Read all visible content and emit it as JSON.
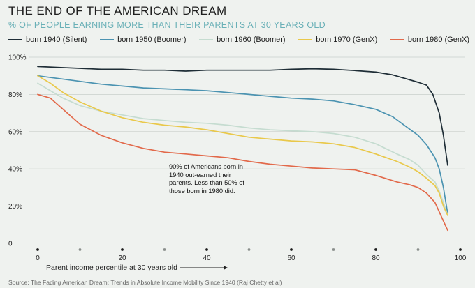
{
  "chart_data": {
    "type": "line",
    "title": "THE END OF THE AMERICAN DREAM",
    "subtitle": "% OF PEOPLE EARNING MORE THAN THEIR PARENTS AT 30 YEARS OLD",
    "xlabel": "Parent income percentile at 30 years old",
    "ylabel": "",
    "xlim": [
      0,
      100
    ],
    "ylim": [
      0,
      100
    ],
    "x_ticks": [
      "0",
      "20",
      "40",
      "60",
      "80",
      "100"
    ],
    "y_ticks": [
      "0",
      "20%",
      "40%",
      "60%",
      "80%",
      "100%"
    ],
    "grid": "horizontal",
    "legend": "top",
    "annotation": "90% of Americans born in 1940 out-earned their parents. Less than 50% of those born in 1980 did.",
    "source": "Source: The Fading American Dream: Trends in Absolute Income Mobility Since 1940 (Raj Chetty et al)",
    "series": [
      {
        "name": "born 1940 (Silent)",
        "color": "#1e2d36",
        "points": [
          [
            0,
            95
          ],
          [
            5,
            94.5
          ],
          [
            10,
            94
          ],
          [
            15,
            93.5
          ],
          [
            20,
            93.5
          ],
          [
            25,
            93
          ],
          [
            30,
            93
          ],
          [
            35,
            92.5
          ],
          [
            40,
            93
          ],
          [
            45,
            93
          ],
          [
            50,
            93
          ],
          [
            55,
            93
          ],
          [
            60,
            93.5
          ],
          [
            65,
            93.8
          ],
          [
            70,
            93.5
          ],
          [
            75,
            92.8
          ],
          [
            80,
            92
          ],
          [
            84,
            90.5
          ],
          [
            87,
            88.5
          ],
          [
            90,
            86.5
          ],
          [
            92,
            85
          ],
          [
            93.5,
            80
          ],
          [
            95,
            70
          ],
          [
            96,
            58
          ],
          [
            97,
            42
          ]
        ]
      },
      {
        "name": "born 1950 (Boomer)",
        "color": "#4b93b1",
        "points": [
          [
            0,
            90
          ],
          [
            5,
            88.5
          ],
          [
            10,
            87
          ],
          [
            15,
            85.5
          ],
          [
            20,
            84.5
          ],
          [
            25,
            83.5
          ],
          [
            30,
            83
          ],
          [
            35,
            82.5
          ],
          [
            40,
            82
          ],
          [
            45,
            81
          ],
          [
            50,
            80
          ],
          [
            55,
            79
          ],
          [
            60,
            78
          ],
          [
            65,
            77.5
          ],
          [
            70,
            76.5
          ],
          [
            75,
            74.5
          ],
          [
            80,
            72
          ],
          [
            84,
            68
          ],
          [
            87,
            63
          ],
          [
            90,
            58
          ],
          [
            92,
            53
          ],
          [
            94,
            46
          ],
          [
            95,
            40
          ],
          [
            96,
            30
          ],
          [
            97,
            16
          ]
        ]
      },
      {
        "name": "born 1960 (Boomer)",
        "color": "#c5dcd0",
        "points": [
          [
            0,
            86
          ],
          [
            3,
            82
          ],
          [
            6,
            78
          ],
          [
            10,
            74
          ],
          [
            15,
            71
          ],
          [
            20,
            69
          ],
          [
            25,
            67
          ],
          [
            30,
            66
          ],
          [
            35,
            65
          ],
          [
            40,
            64.5
          ],
          [
            45,
            63.5
          ],
          [
            50,
            62
          ],
          [
            55,
            61
          ],
          [
            60,
            60.5
          ],
          [
            65,
            60
          ],
          [
            70,
            59
          ],
          [
            75,
            57
          ],
          [
            80,
            53.5
          ],
          [
            85,
            48
          ],
          [
            88,
            45
          ],
          [
            90,
            42
          ],
          [
            92,
            37
          ],
          [
            94,
            33
          ],
          [
            95,
            28
          ],
          [
            96,
            22
          ],
          [
            97,
            15
          ]
        ]
      },
      {
        "name": "born 1970 (GenX)",
        "color": "#e9c84a",
        "points": [
          [
            0,
            90
          ],
          [
            3,
            86
          ],
          [
            6,
            81
          ],
          [
            10,
            76
          ],
          [
            15,
            71
          ],
          [
            20,
            67.5
          ],
          [
            25,
            65
          ],
          [
            30,
            63.5
          ],
          [
            35,
            62.5
          ],
          [
            40,
            61
          ],
          [
            45,
            59
          ],
          [
            50,
            57
          ],
          [
            55,
            56
          ],
          [
            60,
            55
          ],
          [
            65,
            54.5
          ],
          [
            70,
            53.5
          ],
          [
            75,
            51.5
          ],
          [
            80,
            48
          ],
          [
            85,
            44
          ],
          [
            88,
            41
          ],
          [
            90,
            38.5
          ],
          [
            92,
            35
          ],
          [
            94,
            31
          ],
          [
            95,
            27
          ],
          [
            96,
            20
          ],
          [
            97,
            15
          ]
        ]
      },
      {
        "name": "born 1980 (GenX)",
        "color": "#e2694a",
        "points": [
          [
            0,
            80
          ],
          [
            3,
            78
          ],
          [
            6,
            72
          ],
          [
            10,
            64
          ],
          [
            15,
            58
          ],
          [
            20,
            54
          ],
          [
            25,
            51
          ],
          [
            30,
            49
          ],
          [
            35,
            48
          ],
          [
            40,
            47
          ],
          [
            45,
            46
          ],
          [
            50,
            44
          ],
          [
            55,
            42.5
          ],
          [
            60,
            41.5
          ],
          [
            65,
            40.5
          ],
          [
            70,
            40
          ],
          [
            75,
            39.5
          ],
          [
            80,
            36.5
          ],
          [
            85,
            33
          ],
          [
            88,
            31.5
          ],
          [
            90,
            30
          ],
          [
            92,
            27
          ],
          [
            94,
            22
          ],
          [
            95,
            17
          ],
          [
            96,
            12
          ],
          [
            97,
            7
          ]
        ]
      }
    ]
  }
}
